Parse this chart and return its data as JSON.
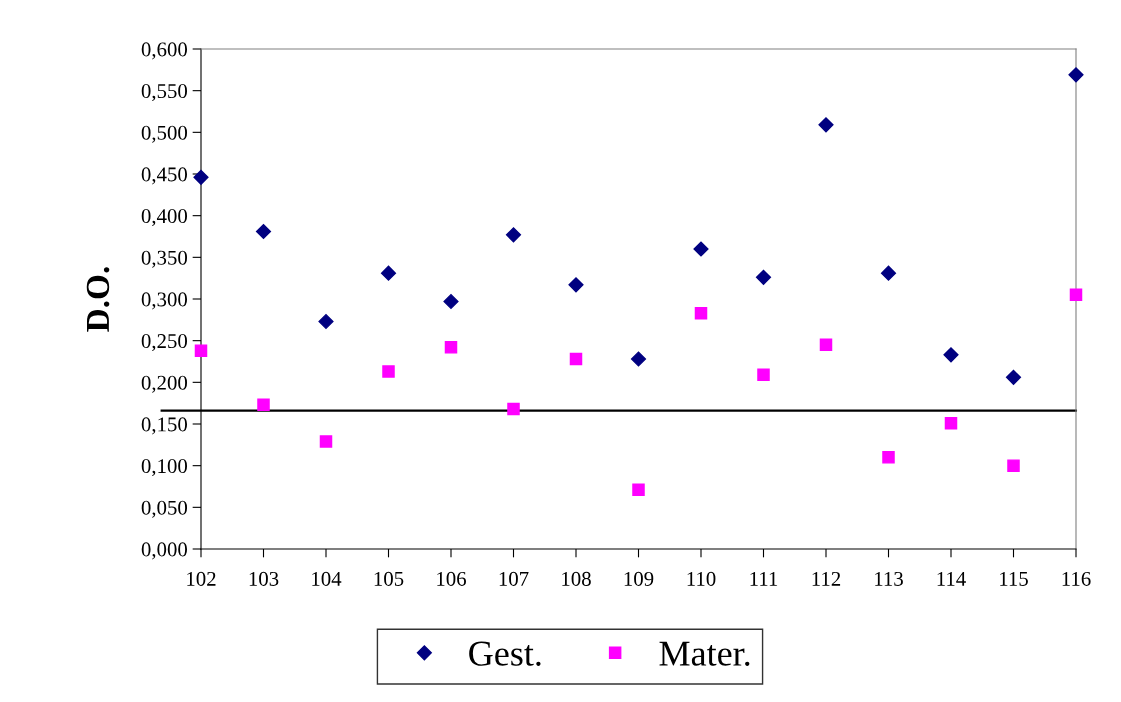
{
  "chart_data": {
    "type": "scatter",
    "ylabel": "D.O.",
    "categories": [
      "102",
      "103",
      "104",
      "105",
      "106",
      "107",
      "108",
      "109",
      "110",
      "111",
      "112",
      "113",
      "114",
      "115",
      "116"
    ],
    "series": [
      {
        "name": "Gest.",
        "color": "#000080",
        "marker": "diamond",
        "values": [
          0.446,
          0.381,
          0.273,
          0.331,
          0.297,
          0.377,
          0.317,
          0.228,
          0.36,
          0.326,
          0.509,
          0.331,
          0.233,
          0.206,
          0.569
        ]
      },
      {
        "name": "Mater.",
        "color": "#ff00ff",
        "marker": "square",
        "values": [
          0.238,
          0.173,
          0.129,
          0.213,
          0.242,
          0.168,
          0.228,
          0.071,
          0.283,
          0.209,
          0.245,
          0.11,
          0.151,
          0.1,
          0.305
        ]
      }
    ],
    "ref_lines": [
      {
        "axis": "y",
        "value": 0.166,
        "color": "#000000",
        "line_style": "solid"
      }
    ],
    "ylim": [
      0,
      0.6
    ],
    "yticks": [
      {
        "value": 0,
        "label": "0,000"
      },
      {
        "value": 0.05,
        "label": "0,050"
      },
      {
        "value": 0.1,
        "label": "0,100"
      },
      {
        "value": 0.15,
        "label": "0,150"
      },
      {
        "value": 0.2,
        "label": "0,200"
      },
      {
        "value": 0.25,
        "label": "0,250"
      },
      {
        "value": 0.3,
        "label": "0,300"
      },
      {
        "value": 0.35,
        "label": "0,350"
      },
      {
        "value": 0.4,
        "label": "0,400"
      },
      {
        "value": 0.45,
        "label": "0,450"
      },
      {
        "value": 0.5,
        "label": "0,500"
      },
      {
        "value": 0.55,
        "label": "0,550"
      },
      {
        "value": 0.6,
        "label": "0,600"
      }
    ],
    "grid": false,
    "legend": "bottom"
  }
}
